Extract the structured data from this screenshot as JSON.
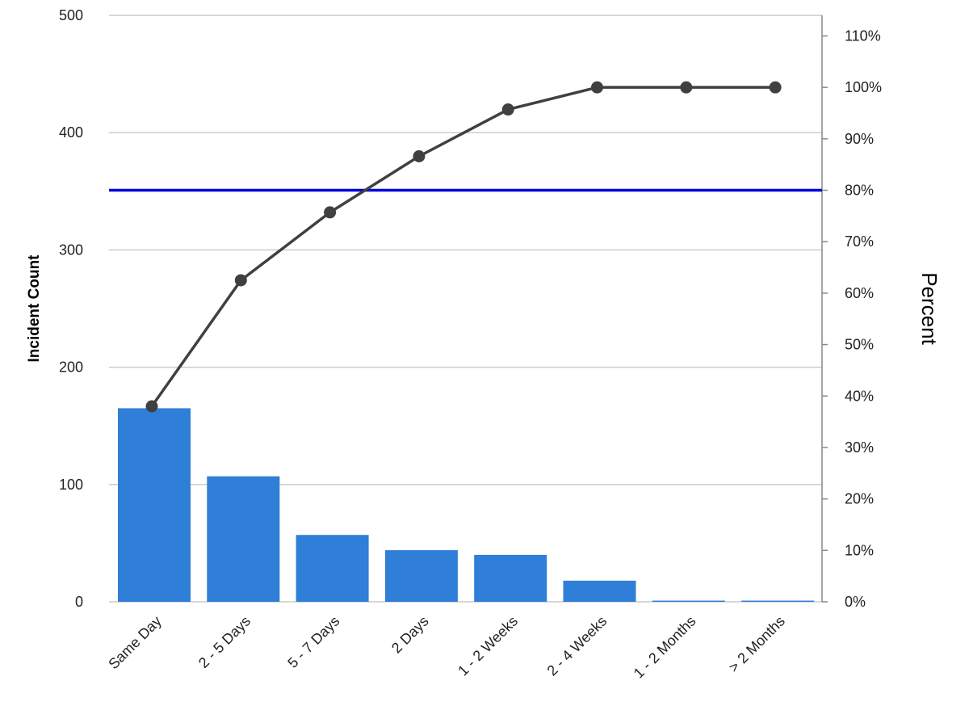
{
  "chart_data": {
    "type": "bar",
    "categories": [
      "Same Day",
      "2 - 5 Days",
      "5 - 7 Days",
      "2 Days",
      "1 - 2 Weeks",
      "2 - 4 Weeks",
      "1 - 2 Months",
      "> 2 Months"
    ],
    "series": [
      {
        "type": "bar",
        "axis": "left",
        "values": [
          165,
          107,
          57,
          44,
          40,
          18,
          1,
          1
        ]
      },
      {
        "type": "line",
        "axis": "right",
        "values": [
          38,
          62.5,
          75.7,
          86.6,
          95.7,
          100,
          100,
          100
        ]
      }
    ],
    "reference_line": {
      "axis": "right",
      "value": 80
    },
    "ylabel": "Incident Count",
    "y2label": "Percent",
    "ylim": [
      0,
      500
    ],
    "y2lim": [
      0,
      114
    ],
    "yticks": [
      "0",
      "100",
      "200",
      "300",
      "400",
      "500"
    ],
    "y2ticks": [
      "0%",
      "10%",
      "20%",
      "30%",
      "40%",
      "50%",
      "60%",
      "70%",
      "80%",
      "90%",
      "100%",
      "110%"
    ],
    "grid": true,
    "legend": "none"
  },
  "colors": {
    "bar": "#2f7ed8",
    "line": "#404040",
    "reference": "#0000dd",
    "grid": "#cccccc",
    "axis": "#888888"
  }
}
